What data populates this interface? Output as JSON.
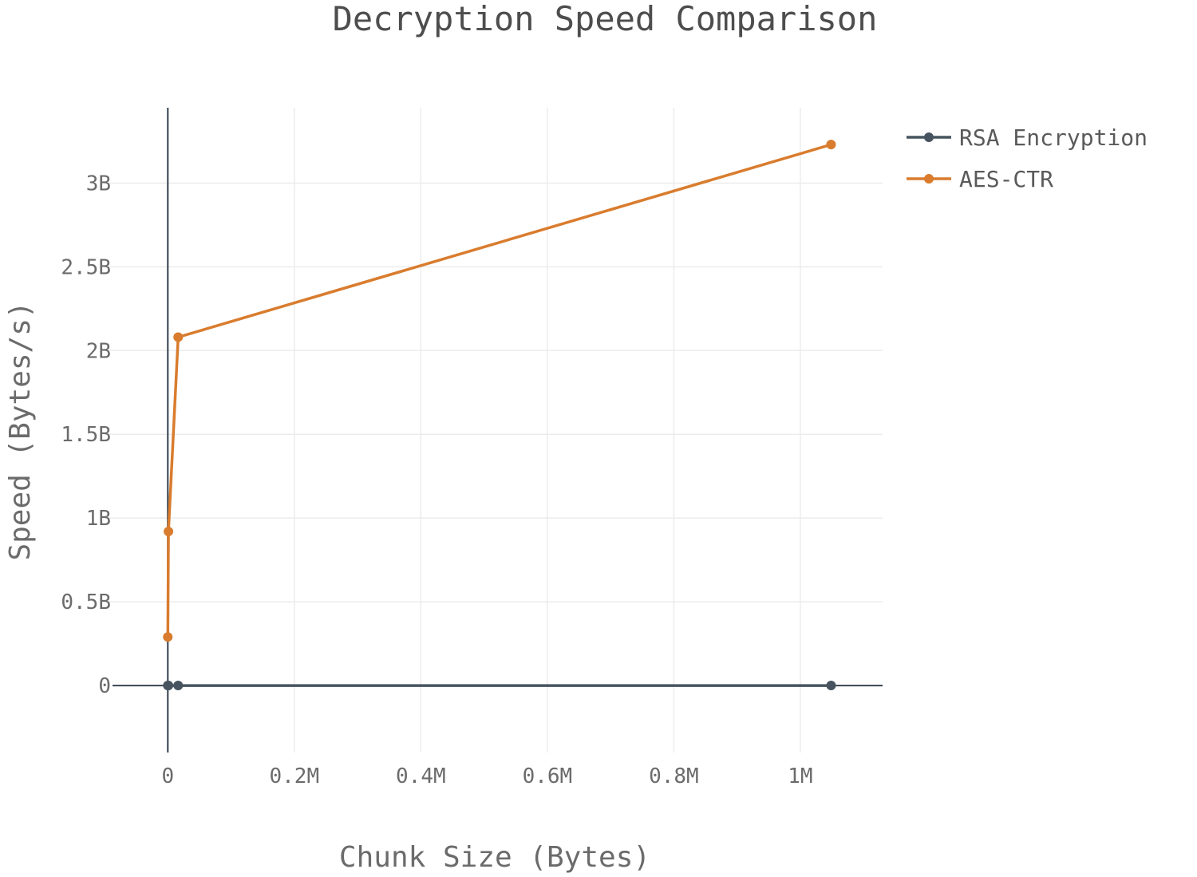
{
  "chart_data": {
    "type": "line",
    "title": "Decryption Speed Comparison",
    "xlabel": "Chunk Size (Bytes)",
    "ylabel": "Speed (Bytes/s)",
    "xlim": [
      -100000,
      1130000
    ],
    "ylim": [
      -400000000,
      3450000000
    ],
    "x_ticks": [
      {
        "value": 0,
        "label": "0"
      },
      {
        "value": 200000,
        "label": "0.2M"
      },
      {
        "value": 400000,
        "label": "0.4M"
      },
      {
        "value": 600000,
        "label": "0.6M"
      },
      {
        "value": 800000,
        "label": "0.8M"
      },
      {
        "value": 1000000,
        "label": "1M"
      }
    ],
    "y_ticks": [
      {
        "value": 0,
        "label": "0"
      },
      {
        "value": 500000000,
        "label": "0.5B"
      },
      {
        "value": 1000000000,
        "label": "1B"
      },
      {
        "value": 1500000000,
        "label": "1.5B"
      },
      {
        "value": 2000000000,
        "label": "2B"
      },
      {
        "value": 2500000000,
        "label": "2.5B"
      },
      {
        "value": 3000000000,
        "label": "3B"
      }
    ],
    "grid": true,
    "legend_position": "top-right",
    "series": [
      {
        "name": "RSA Encryption",
        "color": "#47545f",
        "points": [
          {
            "x": 16,
            "y": 0
          },
          {
            "x": 1024,
            "y": 0
          },
          {
            "x": 16384,
            "y": 0
          },
          {
            "x": 1048576,
            "y": 0
          }
        ]
      },
      {
        "name": "AES-CTR",
        "color": "#d97c2e",
        "points": [
          {
            "x": 16,
            "y": 290000000
          },
          {
            "x": 1024,
            "y": 920000000
          },
          {
            "x": 16384,
            "y": 2080000000
          },
          {
            "x": 1048576,
            "y": 3230000000
          }
        ]
      }
    ]
  }
}
